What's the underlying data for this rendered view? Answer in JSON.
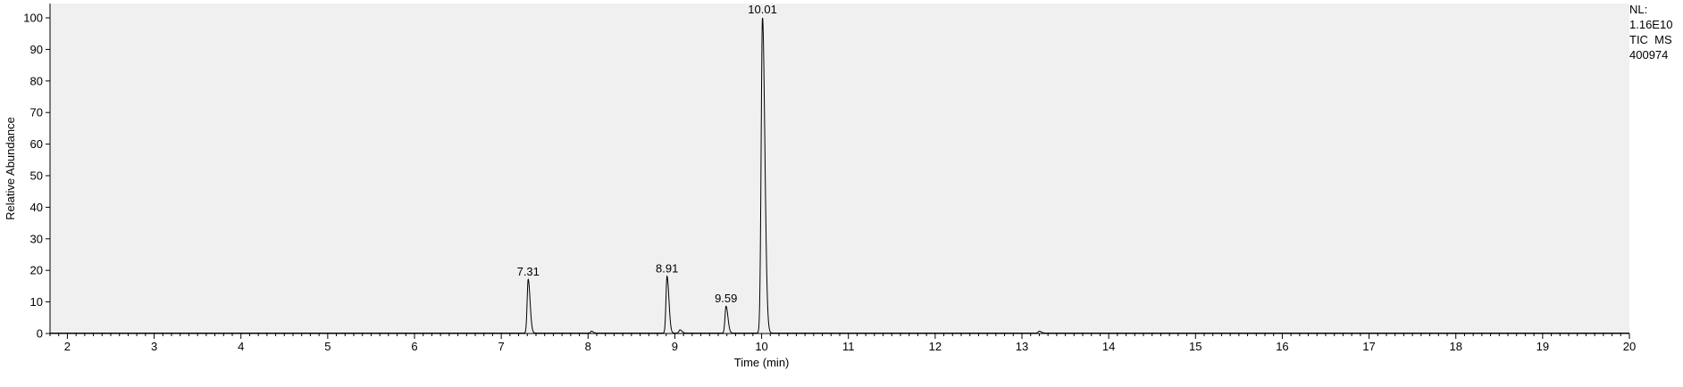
{
  "info_box": {
    "nl_label": "NL:",
    "nl_value": "1.16E10",
    "scan_filter": "TIC  MS",
    "file_id": "400974"
  },
  "colors": {
    "plot_background": "#f0f0f0",
    "trace": "#000000",
    "axis": "#000000"
  },
  "chart_data": {
    "type": "line",
    "title": "",
    "xlabel": "Time (min)",
    "ylabel": "Relative Abundance",
    "xlim": [
      1.8,
      20
    ],
    "ylim": [
      0,
      100
    ],
    "x_ticks": [
      2,
      3,
      4,
      5,
      6,
      7,
      8,
      9,
      10,
      11,
      12,
      13,
      14,
      15,
      16,
      17,
      18,
      19,
      20
    ],
    "y_ticks": [
      0,
      10,
      20,
      30,
      40,
      50,
      60,
      70,
      80,
      90,
      100
    ],
    "grid": false,
    "legend": "none",
    "peaks": [
      {
        "rt": 7.31,
        "height": 17,
        "width": 0.012,
        "label": "7.31"
      },
      {
        "rt": 8.91,
        "height": 18,
        "width": 0.012,
        "label": "8.91"
      },
      {
        "rt": 9.59,
        "height": 8.5,
        "width": 0.012,
        "label": "9.59"
      },
      {
        "rt": 10.01,
        "height": 100,
        "width": 0.015,
        "label": "10.01"
      }
    ],
    "minor_peaks": [
      {
        "rt": 8.04,
        "height": 0.6,
        "width": 0.01
      },
      {
        "rt": 9.06,
        "height": 1.0,
        "width": 0.012
      },
      {
        "rt": 13.2,
        "height": 0.6,
        "width": 0.012
      }
    ]
  }
}
